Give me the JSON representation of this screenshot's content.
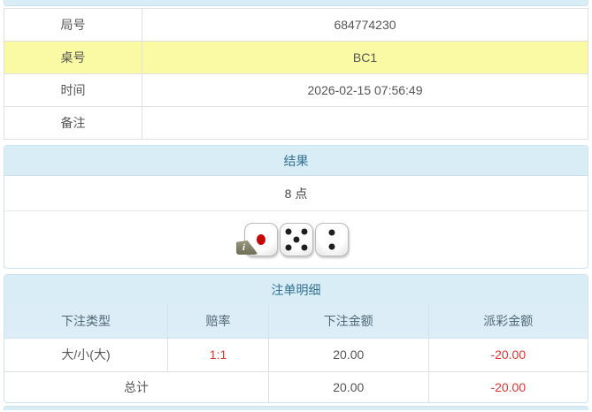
{
  "colors": {
    "accent_blue_bg": "#d9edf7",
    "accent_blue_text": "#31708f",
    "highlight_yellow": "#fafaa4",
    "negative_red": "#e33333",
    "border_gray": "#e0e0e0"
  },
  "info_table": {
    "rows": [
      {
        "label": "局号",
        "value": "684774230",
        "highlight": false
      },
      {
        "label": "桌号",
        "value": "BC1",
        "highlight": true
      },
      {
        "label": "时间",
        "value": "2026-02-15 07:56:49",
        "highlight": false
      },
      {
        "label": "备注",
        "value": "",
        "highlight": false
      }
    ]
  },
  "result_panel": {
    "title": "结果",
    "points": "8 点",
    "dice": [
      {
        "value": 1,
        "pip_color": "#c40808",
        "info_badge": true
      },
      {
        "value": 5,
        "pip_color": "#1f1f1f",
        "info_badge": false
      },
      {
        "value": 2,
        "pip_color": "#1f1f1f",
        "info_badge": false
      }
    ],
    "info_badge_label": "i"
  },
  "bets_panel": {
    "title": "注单明细",
    "columns": [
      "下注类型",
      "赔率",
      "下注金额",
      "派彩金额"
    ],
    "rows": [
      {
        "type": "大/小(大)",
        "odds": "1:1",
        "amount": "20.00",
        "payout": "-20.00"
      }
    ],
    "total": {
      "label": "总计",
      "amount": "20.00",
      "payout": "-20.00"
    }
  }
}
